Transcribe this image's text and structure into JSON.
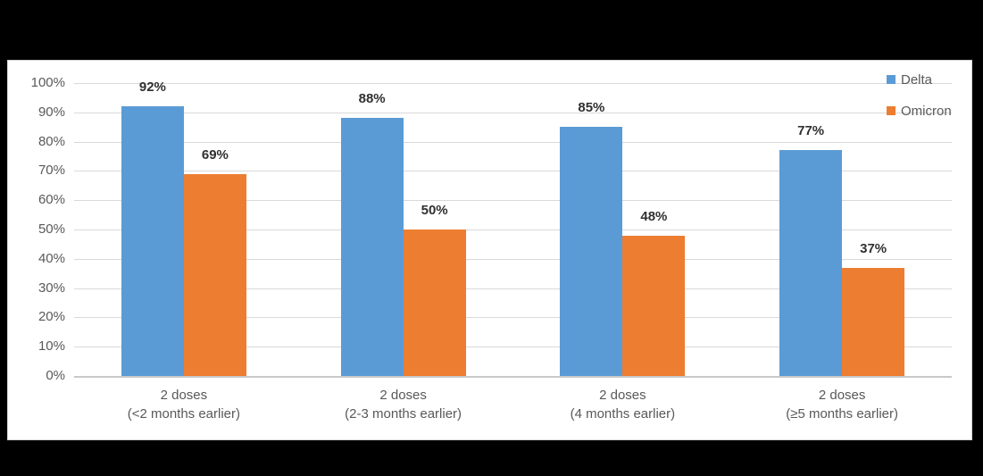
{
  "colors": {
    "page_background": "#000000",
    "panel_background": "#ffffff",
    "panel_border": "#d6d6d6",
    "gridline": "#d9d9d9",
    "axis_line": "#c9c9c9",
    "tick_text": "#595959",
    "category_text": "#595959",
    "data_label_text": "#303030",
    "legend_text": "#595959",
    "delta": "#5B9BD5",
    "omicron": "#ED7D31"
  },
  "legend": {
    "position": "top-right",
    "entries": [
      {
        "label": "Delta",
        "color": "#5B9BD5",
        "marker": "square-icon"
      },
      {
        "label": "Omicron",
        "color": "#ED7D31",
        "marker": "square-icon"
      }
    ]
  },
  "chart_data": {
    "type": "bar",
    "title": "",
    "xlabel": "",
    "ylabel": "",
    "categories": [
      "2 doses\n(<2 months earlier)",
      "2 doses\n(2-3 months earlier)",
      "2 doses\n(4 months earlier)",
      "2 doses\n(≥5 months earlier)"
    ],
    "series": [
      {
        "name": "Delta",
        "color": "#5B9BD5",
        "values": [
          92,
          88,
          85,
          77
        ]
      },
      {
        "name": "Omicron",
        "color": "#ED7D31",
        "values": [
          69,
          50,
          48,
          37
        ]
      }
    ],
    "data_labels": {
      "Delta": [
        "92%",
        "88%",
        "85%",
        "77%"
      ],
      "Omicron": [
        "69%",
        "50%",
        "48%",
        "37%"
      ]
    },
    "value_suffix": "%",
    "ylim": [
      0,
      100
    ],
    "y_tick_step": 10,
    "y_tick_labels": [
      "0%",
      "10%",
      "20%",
      "30%",
      "40%",
      "50%",
      "60%",
      "70%",
      "80%",
      "90%",
      "100%"
    ],
    "grid": true,
    "legend_position": "top-right"
  }
}
